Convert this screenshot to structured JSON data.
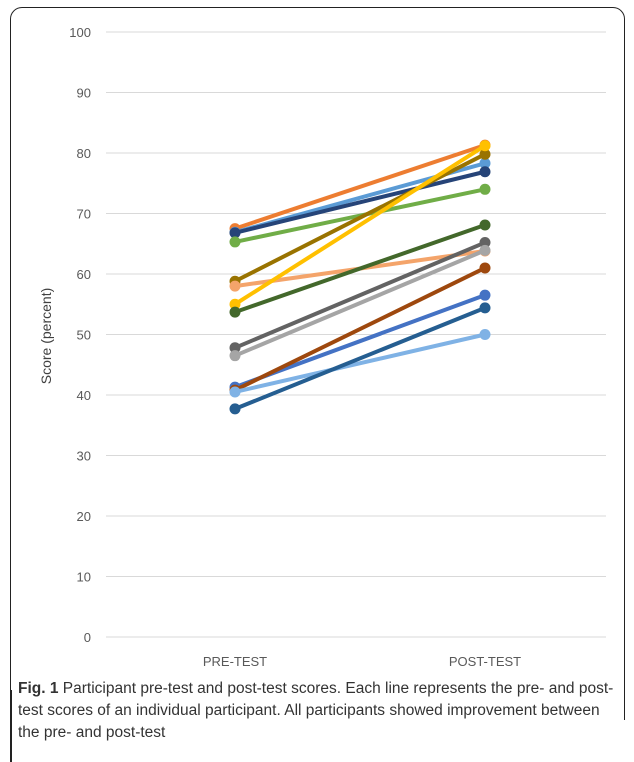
{
  "chart_data": {
    "type": "line",
    "categories": [
      "PRE-TEST",
      "POST-TEST"
    ],
    "ylabel": "Score (percent)",
    "ylim": [
      0,
      100
    ],
    "yticks": [
      0,
      10,
      20,
      30,
      40,
      50,
      60,
      70,
      80,
      90,
      100
    ],
    "grid": true,
    "series": [
      {
        "values": [
          67.5,
          81.3
        ],
        "color": "#ED7D31"
      },
      {
        "values": [
          66.9,
          78.3
        ],
        "color": "#5B9BD5"
      },
      {
        "values": [
          66.8,
          76.9
        ],
        "color": "#264478"
      },
      {
        "values": [
          65.3,
          74.0
        ],
        "color": "#70AD47"
      },
      {
        "values": [
          58.8,
          79.8
        ],
        "color": "#997300"
      },
      {
        "values": [
          58.0,
          63.8
        ],
        "color": "#F4A46A"
      },
      {
        "values": [
          55.0,
          81.2
        ],
        "color": "#FFC000"
      },
      {
        "values": [
          53.7,
          68.1
        ],
        "color": "#43682B"
      },
      {
        "values": [
          47.8,
          65.2
        ],
        "color": "#636363"
      },
      {
        "values": [
          46.5,
          63.9
        ],
        "color": "#A5A5A5"
      },
      {
        "values": [
          41.3,
          56.5
        ],
        "color": "#4472C4"
      },
      {
        "values": [
          40.8,
          61.0
        ],
        "color": "#9E480E"
      },
      {
        "values": [
          40.5,
          50.0
        ],
        "color": "#7FB2E5"
      },
      {
        "values": [
          37.7,
          54.4
        ],
        "color": "#255E91"
      }
    ]
  },
  "caption": {
    "label": "Fig. 1",
    "text": " Participant pre-test and post-test scores. Each line represents the pre- and post-test scores of an individual participant. All participants showed improvement between the pre- and post-test"
  }
}
